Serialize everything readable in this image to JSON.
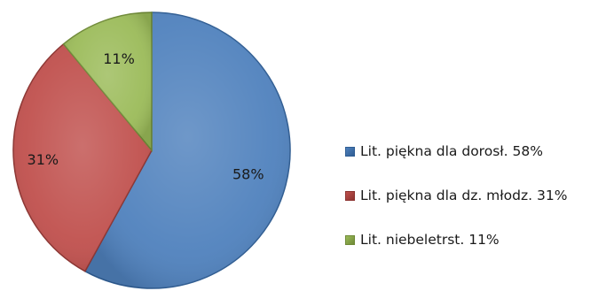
{
  "chart_data": {
    "type": "pie",
    "title": "",
    "slices": [
      {
        "name": "Lit. piękna dla dorosł. 58%",
        "value": 58,
        "label": "58%",
        "color": "#4f81bd",
        "edge": "#2f5d93"
      },
      {
        "name": "Lit. piękna dla dz. młodz. 31%",
        "value": 31,
        "label": "31%",
        "color": "#c0504d",
        "edge": "#8c3330"
      },
      {
        "name": "Lit. niebeletrst. 11%",
        "value": 11,
        "label": "11%",
        "color": "#9bbb59",
        "edge": "#6f8a37"
      }
    ],
    "start_angle_deg": 0,
    "direction": "clockwise",
    "legend": "right"
  }
}
